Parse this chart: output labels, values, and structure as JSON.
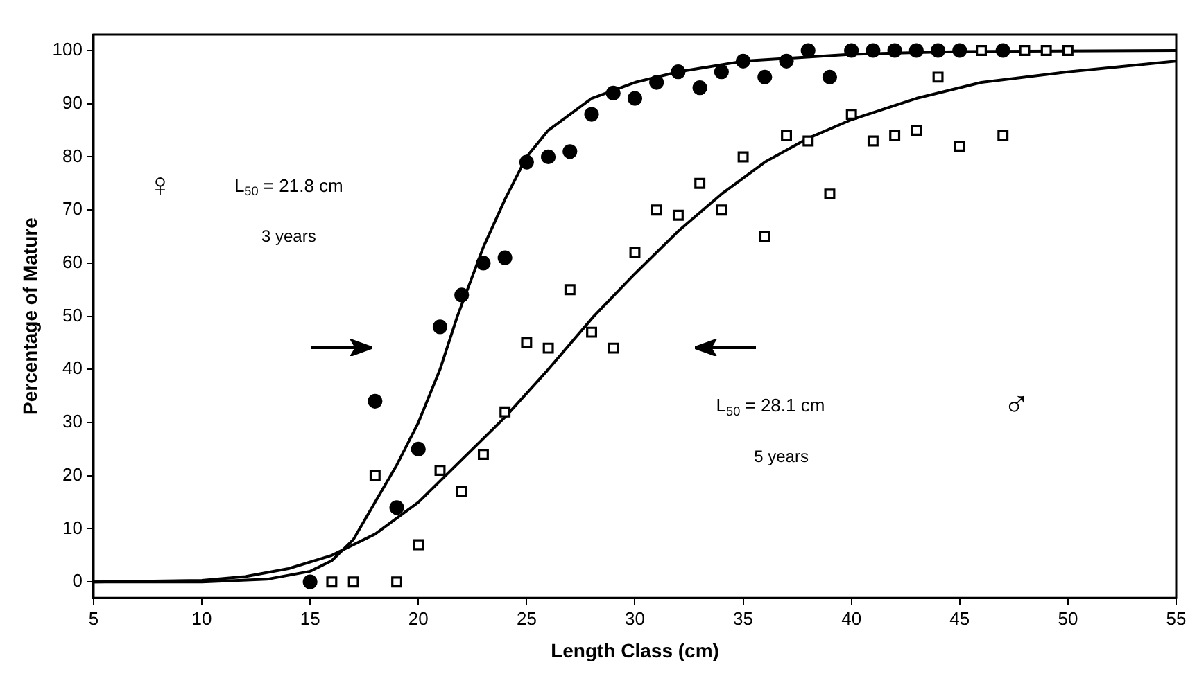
{
  "chart_data": {
    "type": "scatter",
    "xlabel": "Length Class (cm)",
    "ylabel": "Percentage of Mature",
    "xlim": [
      5,
      55
    ],
    "xticks": [
      5,
      10,
      15,
      20,
      25,
      30,
      35,
      40,
      45,
      50,
      55
    ],
    "ylim": [
      -3,
      103
    ],
    "yticks": [
      0,
      10,
      20,
      30,
      40,
      50,
      60,
      70,
      80,
      90,
      100
    ],
    "grid": false,
    "legend": false,
    "annotations": [
      "♀",
      "L$_{50}$ = 21.8 cm",
      "3 years",
      "L$_{50}$ = 28.1 cm",
      "5 years",
      "♂"
    ],
    "series": [
      {
        "marker": "circle",
        "color": "#000000",
        "x": [
          15,
          18,
          19,
          20,
          21,
          22,
          23,
          24,
          25,
          26,
          27,
          28,
          29,
          30,
          31,
          32,
          33,
          34,
          35,
          36,
          37,
          38,
          39,
          40,
          41,
          42,
          43,
          44,
          45,
          47
        ],
        "values": [
          0,
          34,
          14,
          25,
          48,
          54,
          60,
          61,
          79,
          80,
          81,
          88,
          92,
          91,
          94,
          96,
          93,
          96,
          98,
          95,
          98,
          100,
          95,
          100,
          100,
          100,
          100,
          100,
          100,
          100
        ]
      },
      {
        "marker": "square",
        "color": "#000000",
        "x": [
          16,
          17,
          18,
          19,
          20,
          21,
          22,
          23,
          24,
          25,
          26,
          27,
          28,
          29,
          30,
          31,
          32,
          33,
          34,
          35,
          36,
          37,
          38,
          39,
          40,
          41,
          42,
          43,
          44,
          45,
          46,
          47,
          48,
          49,
          50
        ],
        "values": [
          0,
          0,
          20,
          0,
          7,
          21,
          17,
          24,
          32,
          45,
          44,
          55,
          47,
          44,
          62,
          70,
          69,
          75,
          70,
          80,
          65,
          84,
          83,
          73,
          88,
          83,
          84,
          85,
          95,
          82,
          100,
          84,
          100,
          100,
          100
        ]
      },
      {
        "type": "line",
        "marker": "none",
        "color": "#000000",
        "x": [
          5,
          10,
          13,
          15,
          16,
          17,
          18,
          19,
          20,
          21,
          21.8,
          23,
          24,
          25,
          26,
          27,
          28,
          30,
          32,
          35,
          40,
          45,
          55
        ],
        "values": [
          0,
          0,
          0.5,
          2,
          4,
          8,
          15,
          22,
          30,
          40,
          50,
          63,
          72,
          80,
          85,
          88,
          91,
          94,
          96,
          98,
          99.3,
          99.8,
          100
        ]
      },
      {
        "type": "line",
        "marker": "none",
        "color": "#000000",
        "x": [
          5,
          10,
          12,
          14,
          16,
          18,
          20,
          22,
          24,
          26,
          28.1,
          30,
          32,
          34,
          36,
          38,
          40,
          43,
          46,
          50,
          55
        ],
        "values": [
          0,
          0.3,
          1,
          2.5,
          5,
          9,
          15,
          23,
          31,
          40,
          50,
          58,
          66,
          73,
          79,
          83.5,
          87,
          91,
          94,
          96,
          98
        ]
      }
    ]
  }
}
